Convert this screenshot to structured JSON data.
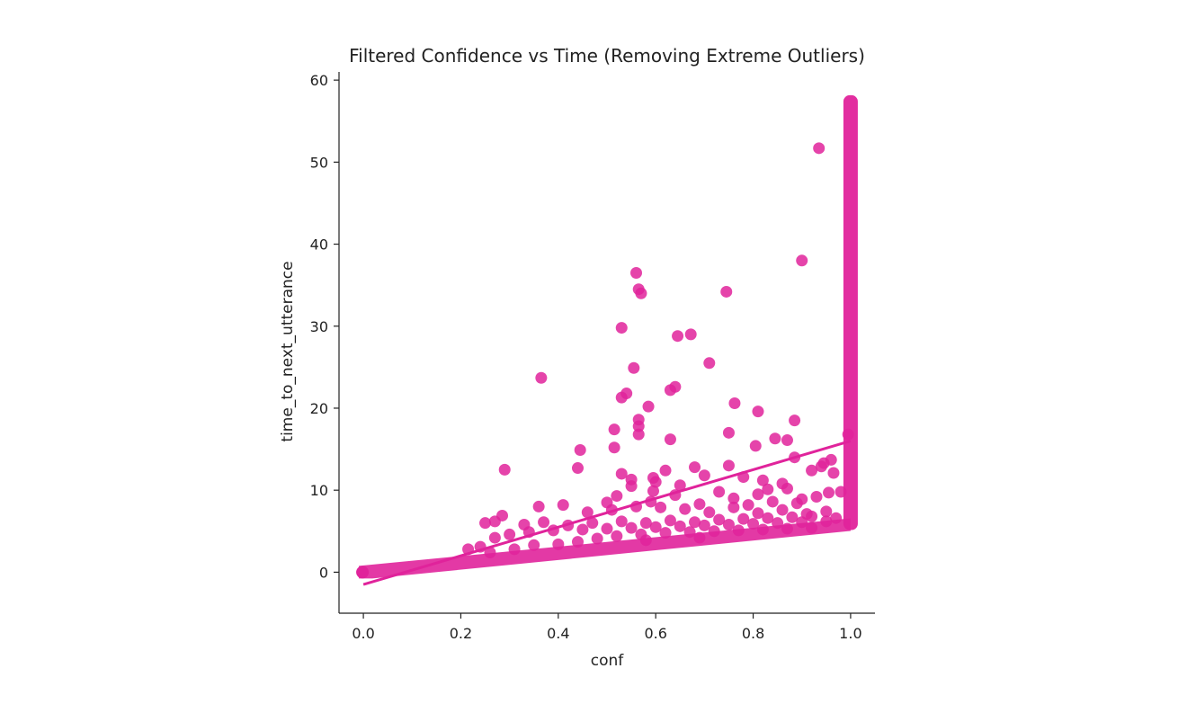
{
  "chart_data": {
    "type": "scatter",
    "title": "Filtered Confidence vs Time (Removing Extreme Outliers)",
    "xlabel": "conf",
    "ylabel": "time_to_next_utterance",
    "xlim": [
      -0.05,
      1.05
    ],
    "ylim": [
      -5,
      61
    ],
    "xticks": [
      0.0,
      0.2,
      0.4,
      0.6,
      0.8,
      1.0
    ],
    "xtick_labels": [
      "0.0",
      "0.2",
      "0.4",
      "0.6",
      "0.8",
      "1.0"
    ],
    "yticks": [
      0,
      10,
      20,
      30,
      40,
      50,
      60
    ],
    "ytick_labels": [
      "0",
      "10",
      "20",
      "30",
      "40",
      "50",
      "60"
    ],
    "grid": false,
    "color": "#e0239b",
    "point_alpha": 0.85,
    "regression_line": {
      "x": [
        0.0,
        1.0
      ],
      "y": [
        -1.5,
        16.0
      ]
    },
    "lower_band": {
      "x": [
        0.0,
        1.0
      ],
      "y": [
        0.0,
        5.8
      ]
    },
    "vertical_band": {
      "x": 1.0,
      "y": [
        5.8,
        57.5
      ]
    },
    "points": [
      [
        0.935,
        51.7
      ],
      [
        0.9,
        38.0
      ],
      [
        0.56,
        36.5
      ],
      [
        0.565,
        34.5
      ],
      [
        0.57,
        34.0
      ],
      [
        0.745,
        34.2
      ],
      [
        0.53,
        29.8
      ],
      [
        0.645,
        28.8
      ],
      [
        0.672,
        29.0
      ],
      [
        0.71,
        25.5
      ],
      [
        0.555,
        24.9
      ],
      [
        0.365,
        23.7
      ],
      [
        0.63,
        22.2
      ],
      [
        0.64,
        22.6
      ],
      [
        0.54,
        21.8
      ],
      [
        0.53,
        21.3
      ],
      [
        0.585,
        20.2
      ],
      [
        0.762,
        20.6
      ],
      [
        0.81,
        19.6
      ],
      [
        0.565,
        18.6
      ],
      [
        0.565,
        17.8
      ],
      [
        0.885,
        18.5
      ],
      [
        0.515,
        17.4
      ],
      [
        0.565,
        16.8
      ],
      [
        0.75,
        17.0
      ],
      [
        0.63,
        16.2
      ],
      [
        0.845,
        16.3
      ],
      [
        0.87,
        16.1
      ],
      [
        0.445,
        14.9
      ],
      [
        0.515,
        15.2
      ],
      [
        0.805,
        15.4
      ],
      [
        0.995,
        16.8
      ],
      [
        0.44,
        12.7
      ],
      [
        0.29,
        12.5
      ],
      [
        0.53,
        12.0
      ],
      [
        0.62,
        12.4
      ],
      [
        0.68,
        12.8
      ],
      [
        0.75,
        13.0
      ],
      [
        0.945,
        13.3
      ],
      [
        0.96,
        13.7
      ],
      [
        0.885,
        14.0
      ],
      [
        0.94,
        12.9
      ],
      [
        0.965,
        12.1
      ],
      [
        0.92,
        12.4
      ],
      [
        0.55,
        11.3
      ],
      [
        0.595,
        11.5
      ],
      [
        0.7,
        11.8
      ],
      [
        0.78,
        11.6
      ],
      [
        0.82,
        11.2
      ],
      [
        0.86,
        10.8
      ],
      [
        0.87,
        10.2
      ],
      [
        0.73,
        9.8
      ],
      [
        0.65,
        10.6
      ],
      [
        0.64,
        9.4
      ],
      [
        0.595,
        9.9
      ],
      [
        0.52,
        9.3
      ],
      [
        0.76,
        9.0
      ],
      [
        0.81,
        9.5
      ],
      [
        0.84,
        8.6
      ],
      [
        0.9,
        8.9
      ],
      [
        0.93,
        9.2
      ],
      [
        0.955,
        9.7
      ],
      [
        0.98,
        9.8
      ],
      [
        0.36,
        8.0
      ],
      [
        0.41,
        8.2
      ],
      [
        0.46,
        7.3
      ],
      [
        0.51,
        7.6
      ],
      [
        0.56,
        8.0
      ],
      [
        0.61,
        7.9
      ],
      [
        0.66,
        7.7
      ],
      [
        0.71,
        7.3
      ],
      [
        0.76,
        7.9
      ],
      [
        0.81,
        7.2
      ],
      [
        0.86,
        7.6
      ],
      [
        0.91,
        7.1
      ],
      [
        0.95,
        7.4
      ],
      [
        0.285,
        6.9
      ],
      [
        0.25,
        6.0
      ],
      [
        0.27,
        6.2
      ],
      [
        0.33,
        5.8
      ],
      [
        0.37,
        6.1
      ],
      [
        0.42,
        5.7
      ],
      [
        0.47,
        6.0
      ],
      [
        0.53,
        6.2
      ],
      [
        0.58,
        6.0
      ],
      [
        0.63,
        6.3
      ],
      [
        0.68,
        6.1
      ],
      [
        0.73,
        6.4
      ],
      [
        0.78,
        6.5
      ],
      [
        0.83,
        6.6
      ],
      [
        0.88,
        6.7
      ],
      [
        0.92,
        6.8
      ],
      [
        0.97,
        6.6
      ],
      [
        0.215,
        2.8
      ],
      [
        0.24,
        3.1
      ],
      [
        0.27,
        4.2
      ],
      [
        0.3,
        4.6
      ],
      [
        0.34,
        4.9
      ],
      [
        0.39,
        5.1
      ],
      [
        0.45,
        5.2
      ],
      [
        0.5,
        5.3
      ],
      [
        0.55,
        5.4
      ],
      [
        0.6,
        5.5
      ],
      [
        0.65,
        5.6
      ],
      [
        0.7,
        5.7
      ],
      [
        0.75,
        5.8
      ],
      [
        0.8,
        5.9
      ],
      [
        0.85,
        6.0
      ],
      [
        0.9,
        6.1
      ],
      [
        0.95,
        6.2
      ],
      [
        0.48,
        4.1
      ],
      [
        0.52,
        4.4
      ],
      [
        0.57,
        4.6
      ],
      [
        0.62,
        4.8
      ],
      [
        0.67,
        4.9
      ],
      [
        0.72,
        5.0
      ],
      [
        0.77,
        5.1
      ],
      [
        0.82,
        5.2
      ],
      [
        0.87,
        5.3
      ],
      [
        0.92,
        5.4
      ],
      [
        0.44,
        3.7
      ],
      [
        0.58,
        3.9
      ],
      [
        0.69,
        4.2
      ],
      [
        0.35,
        3.3
      ],
      [
        0.4,
        3.4
      ],
      [
        0.26,
        2.4
      ],
      [
        0.31,
        2.8
      ],
      [
        0.5,
        8.5
      ],
      [
        0.59,
        8.6
      ],
      [
        0.69,
        8.3
      ],
      [
        0.79,
        8.2
      ],
      [
        0.89,
        8.4
      ],
      [
        0.55,
        10.5
      ],
      [
        0.6,
        11.0
      ],
      [
        0.83,
        10.1
      ]
    ]
  }
}
